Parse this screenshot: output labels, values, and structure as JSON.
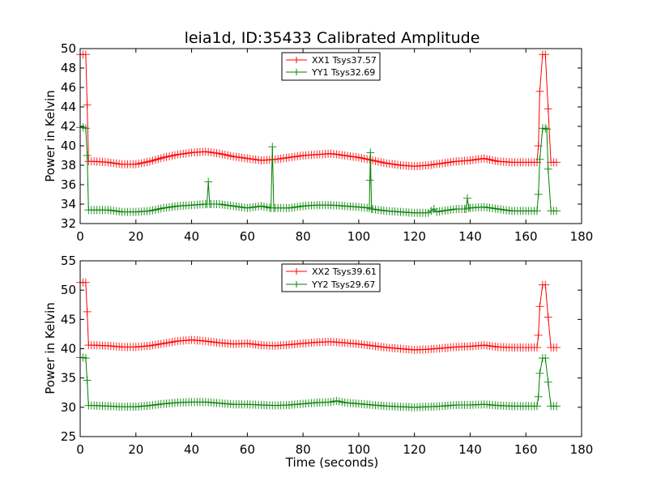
{
  "chart_data": [
    {
      "type": "line",
      "title": "leia1d, ID:35433 Calibrated Amplitude",
      "xlabel": "",
      "ylabel": "Power in Kelvin",
      "xlim": [
        0,
        180
      ],
      "ylim": [
        32,
        50
      ],
      "x_ticks": [
        "0",
        "20",
        "40",
        "60",
        "80",
        "100",
        "120",
        "140",
        "160",
        "180"
      ],
      "y_ticks": [
        "32",
        "34",
        "36",
        "38",
        "40",
        "42",
        "44",
        "46",
        "48",
        "50"
      ],
      "grid": false,
      "legend_position": "top-center",
      "series": [
        {
          "name": "XX1 Tsys37.57",
          "color": "#ff0000",
          "points": [
            [
              0,
              49.4
            ],
            [
              1,
              49.4
            ],
            [
              2,
              49.4
            ],
            [
              2.5,
              44.2
            ],
            [
              3,
              38.4
            ],
            [
              5,
              38.4
            ],
            [
              10,
              38.3
            ],
            [
              15,
              38.1
            ],
            [
              20,
              38.1
            ],
            [
              25,
              38.4
            ],
            [
              30,
              38.8
            ],
            [
              35,
              39.1
            ],
            [
              40,
              39.3
            ],
            [
              45,
              39.4
            ],
            [
              50,
              39.2
            ],
            [
              55,
              38.9
            ],
            [
              60,
              38.7
            ],
            [
              65,
              38.5
            ],
            [
              70,
              38.6
            ],
            [
              75,
              38.8
            ],
            [
              80,
              39.0
            ],
            [
              85,
              39.1
            ],
            [
              90,
              39.2
            ],
            [
              95,
              39.0
            ],
            [
              100,
              38.8
            ],
            [
              105,
              38.5
            ],
            [
              110,
              38.2
            ],
            [
              115,
              38.0
            ],
            [
              120,
              37.9
            ],
            [
              125,
              38.0
            ],
            [
              130,
              38.2
            ],
            [
              135,
              38.4
            ],
            [
              140,
              38.5
            ],
            [
              145,
              38.7
            ],
            [
              150,
              38.4
            ],
            [
              155,
              38.3
            ],
            [
              160,
              38.3
            ],
            [
              164,
              38.3
            ],
            [
              164.5,
              40.0
            ],
            [
              165,
              45.6
            ],
            [
              166,
              49.4
            ],
            [
              167,
              49.4
            ],
            [
              168,
              43.8
            ],
            [
              169,
              38.3
            ],
            [
              171,
              38.3
            ]
          ]
        },
        {
          "name": "YY1 Tsys32.69",
          "color": "#008000",
          "points": [
            [
              0,
              41.9
            ],
            [
              1,
              41.9
            ],
            [
              2,
              41.8
            ],
            [
              2.5,
              39.0
            ],
            [
              3,
              33.4
            ],
            [
              5,
              33.4
            ],
            [
              10,
              33.4
            ],
            [
              15,
              33.2
            ],
            [
              20,
              33.2
            ],
            [
              25,
              33.3
            ],
            [
              30,
              33.6
            ],
            [
              35,
              33.8
            ],
            [
              40,
              33.9
            ],
            [
              45,
              34.0
            ],
            [
              45.5,
              34.0
            ],
            [
              46,
              36.3
            ],
            [
              46.5,
              34.0
            ],
            [
              50,
              34.0
            ],
            [
              55,
              33.8
            ],
            [
              60,
              33.6
            ],
            [
              65,
              33.8
            ],
            [
              68.5,
              33.6
            ],
            [
              69,
              39.9
            ],
            [
              69.5,
              33.6
            ],
            [
              75,
              33.6
            ],
            [
              80,
              33.8
            ],
            [
              85,
              33.9
            ],
            [
              90,
              33.9
            ],
            [
              95,
              33.8
            ],
            [
              100,
              33.7
            ],
            [
              103.8,
              33.6
            ],
            [
              104.2,
              39.3
            ],
            [
              104.6,
              33.5
            ],
            [
              110,
              33.3
            ],
            [
              115,
              33.2
            ],
            [
              120,
              33.1
            ],
            [
              125,
              33.1
            ],
            [
              127,
              33.5
            ],
            [
              128,
              33.2
            ],
            [
              130,
              33.3
            ],
            [
              135,
              33.5
            ],
            [
              138.5,
              33.5
            ],
            [
              139,
              34.6
            ],
            [
              139.5,
              33.6
            ],
            [
              145,
              33.7
            ],
            [
              150,
              33.5
            ],
            [
              155,
              33.3
            ],
            [
              160,
              33.3
            ],
            [
              164,
              33.3
            ],
            [
              164.5,
              35.0
            ],
            [
              165,
              38.6
            ],
            [
              166,
              41.8
            ],
            [
              167,
              41.8
            ],
            [
              167.5,
              41.7
            ],
            [
              168,
              37.6
            ],
            [
              169,
              33.3
            ],
            [
              171,
              33.3
            ]
          ]
        }
      ]
    },
    {
      "type": "line",
      "title": "",
      "xlabel": "Time (seconds)",
      "ylabel": "Power in Kelvin",
      "xlim": [
        0,
        180
      ],
      "ylim": [
        25,
        55
      ],
      "x_ticks": [
        "0",
        "20",
        "40",
        "60",
        "80",
        "100",
        "120",
        "140",
        "160",
        "180"
      ],
      "y_ticks": [
        "25",
        "30",
        "35",
        "40",
        "45",
        "50",
        "55"
      ],
      "grid": false,
      "legend_position": "top-center",
      "series": [
        {
          "name": "XX2 Tsys39.61",
          "color": "#ff0000",
          "points": [
            [
              0,
              51.3
            ],
            [
              1,
              51.3
            ],
            [
              2,
              51.3
            ],
            [
              2.5,
              46.3
            ],
            [
              3,
              40.6
            ],
            [
              5,
              40.6
            ],
            [
              10,
              40.5
            ],
            [
              15,
              40.3
            ],
            [
              20,
              40.3
            ],
            [
              25,
              40.5
            ],
            [
              30,
              40.9
            ],
            [
              35,
              41.3
            ],
            [
              40,
              41.5
            ],
            [
              45,
              41.3
            ],
            [
              50,
              41.0
            ],
            [
              55,
              40.8
            ],
            [
              60,
              40.9
            ],
            [
              65,
              40.6
            ],
            [
              70,
              40.5
            ],
            [
              75,
              40.7
            ],
            [
              80,
              40.9
            ],
            [
              85,
              41.1
            ],
            [
              90,
              41.2
            ],
            [
              95,
              41.0
            ],
            [
              100,
              40.8
            ],
            [
              105,
              40.5
            ],
            [
              110,
              40.2
            ],
            [
              115,
              40.0
            ],
            [
              120,
              39.8
            ],
            [
              125,
              39.9
            ],
            [
              130,
              40.1
            ],
            [
              135,
              40.3
            ],
            [
              140,
              40.4
            ],
            [
              145,
              40.6
            ],
            [
              150,
              40.3
            ],
            [
              155,
              40.2
            ],
            [
              160,
              40.2
            ],
            [
              164,
              40.2
            ],
            [
              164.5,
              42.3
            ],
            [
              165,
              47.2
            ],
            [
              166,
              50.9
            ],
            [
              167,
              50.9
            ],
            [
              168,
              45.4
            ],
            [
              169,
              40.2
            ],
            [
              171,
              40.2
            ]
          ]
        },
        {
          "name": "YY2 Tsys29.67",
          "color": "#008000",
          "points": [
            [
              0,
              38.5
            ],
            [
              1,
              38.5
            ],
            [
              2,
              38.4
            ],
            [
              2.5,
              34.6
            ],
            [
              3,
              30.3
            ],
            [
              5,
              30.3
            ],
            [
              10,
              30.2
            ],
            [
              15,
              30.1
            ],
            [
              20,
              30.1
            ],
            [
              25,
              30.3
            ],
            [
              30,
              30.6
            ],
            [
              35,
              30.8
            ],
            [
              40,
              30.9
            ],
            [
              45,
              30.9
            ],
            [
              50,
              30.7
            ],
            [
              55,
              30.5
            ],
            [
              60,
              30.5
            ],
            [
              65,
              30.4
            ],
            [
              70,
              30.3
            ],
            [
              75,
              30.4
            ],
            [
              80,
              30.6
            ],
            [
              85,
              30.8
            ],
            [
              90,
              30.9
            ],
            [
              92,
              31.1
            ],
            [
              95,
              30.8
            ],
            [
              100,
              30.6
            ],
            [
              105,
              30.4
            ],
            [
              110,
              30.2
            ],
            [
              115,
              30.1
            ],
            [
              120,
              30.0
            ],
            [
              125,
              30.1
            ],
            [
              130,
              30.2
            ],
            [
              135,
              30.4
            ],
            [
              140,
              30.4
            ],
            [
              145,
              30.5
            ],
            [
              150,
              30.3
            ],
            [
              155,
              30.2
            ],
            [
              160,
              30.2
            ],
            [
              164,
              30.2
            ],
            [
              164.5,
              31.8
            ],
            [
              165,
              35.8
            ],
            [
              166,
              38.4
            ],
            [
              167,
              38.4
            ],
            [
              168,
              34.3
            ],
            [
              169,
              30.2
            ],
            [
              171,
              30.2
            ]
          ]
        }
      ]
    }
  ]
}
